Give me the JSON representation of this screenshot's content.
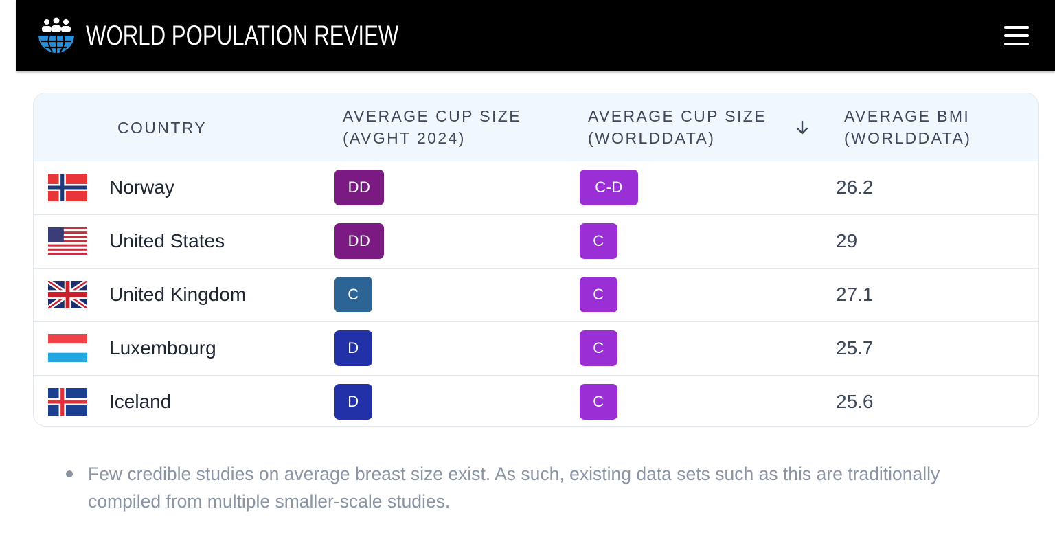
{
  "header": {
    "brand": "WORLD POPULATION REVIEW",
    "logo_icon": "globe-people-icon",
    "menu_icon": "hamburger-menu-icon"
  },
  "table": {
    "columns": [
      {
        "label_line1": "COUNTRY",
        "label_line2": ""
      },
      {
        "label_line1": "AVERAGE CUP SIZE",
        "label_line2": "(AVGHT 2024)"
      },
      {
        "label_line1": "AVERAGE CUP SIZE",
        "label_line2": "(WORLDDATA)",
        "sort": "descending",
        "sort_icon": "arrow-down-icon"
      },
      {
        "label_line1": "AVERAGE BMI",
        "label_line2": "(WORLDDATA)"
      }
    ],
    "rows": [
      {
        "country": "Norway",
        "flag": "norway-flag",
        "avght": "DD",
        "avght_color": "#7a1a82",
        "worlddata": "C-D",
        "worlddata_color": "#9b2fd6",
        "bmi": "26.2"
      },
      {
        "country": "United States",
        "flag": "usa-flag",
        "avght": "DD",
        "avght_color": "#7a1a82",
        "worlddata": "C",
        "worlddata_color": "#9b2fd6",
        "bmi": "29"
      },
      {
        "country": "United Kingdom",
        "flag": "uk-flag",
        "avght": "C",
        "avght_color": "#2c6496",
        "worlddata": "C",
        "worlddata_color": "#9b2fd6",
        "bmi": "27.1"
      },
      {
        "country": "Luxembourg",
        "flag": "luxembourg-flag",
        "avght": "D",
        "avght_color": "#2231a8",
        "worlddata": "C",
        "worlddata_color": "#9b2fd6",
        "bmi": "25.7"
      },
      {
        "country": "Iceland",
        "flag": "iceland-flag",
        "avght": "D",
        "avght_color": "#2231a8",
        "worlddata": "C",
        "worlddata_color": "#9b2fd6",
        "bmi": "25.6"
      }
    ]
  },
  "notes": [
    "Few credible studies on average breast size exist. As such, existing data sets such as this are traditionally compiled from multiple smaller-scale studies."
  ]
}
